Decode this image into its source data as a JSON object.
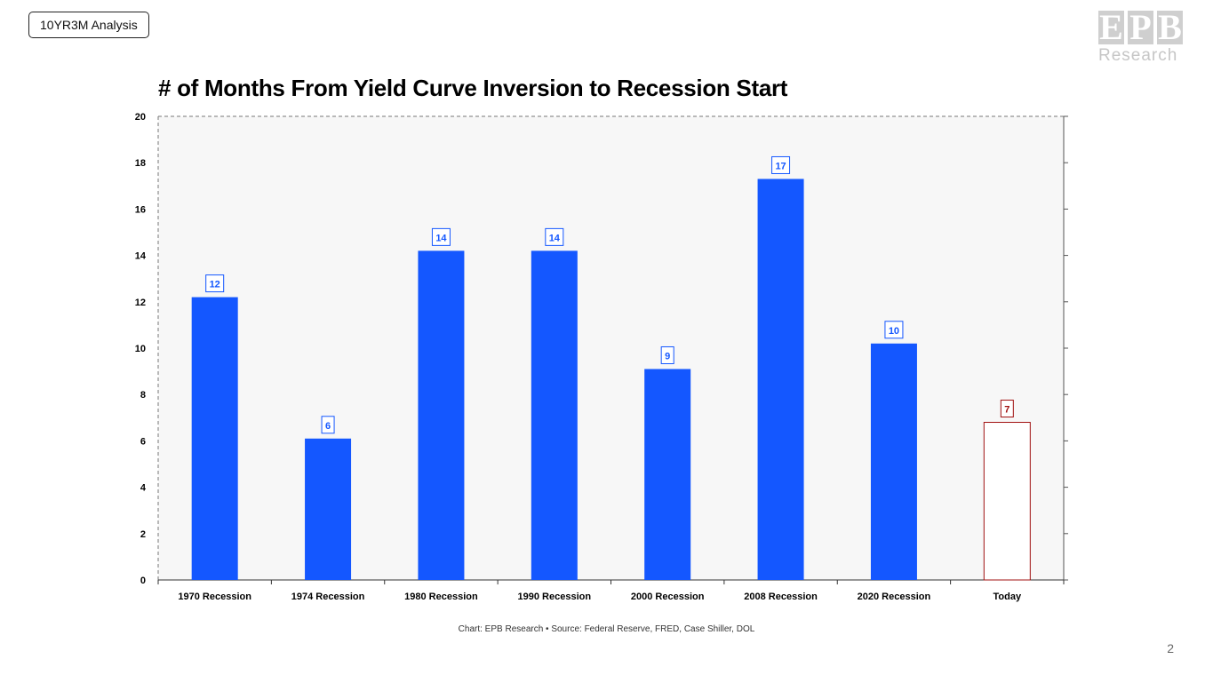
{
  "tag": "10YR3M Analysis",
  "logo": {
    "mark": [
      "E",
      "P",
      "B"
    ],
    "word": "Research"
  },
  "page_number": "2",
  "footer": {
    "source": "Chart: EPB Research •  Source: Federal Reserve, FRED, Case Shiller, DOL"
  },
  "colors": {
    "bar": "#1457ff",
    "highlight": "#a01010",
    "plot_bg": "#f7f7f7"
  },
  "chart_data": {
    "type": "bar",
    "title": "# of Months From Yield Curve Inversion to Recession Start",
    "xlabel": "",
    "ylabel": "",
    "categories": [
      "1970 Recession",
      "1974 Recession",
      "1980 Recession",
      "1990 Recession",
      "2000 Recession",
      "2008 Recession",
      "2020 Recession",
      "Today"
    ],
    "values": [
      12.2,
      6.1,
      14.2,
      14.2,
      9.1,
      17.3,
      10.2,
      6.8
    ],
    "data_labels": [
      "12",
      "6",
      "14",
      "14",
      "9",
      "17",
      "10",
      "7"
    ],
    "highlight": [
      false,
      false,
      false,
      false,
      false,
      false,
      false,
      true
    ],
    "ylim": [
      0,
      20
    ],
    "yticks": [
      0,
      2,
      4,
      6,
      8,
      10,
      12,
      14,
      16,
      18,
      20
    ],
    "grid": false,
    "legend": "none"
  }
}
